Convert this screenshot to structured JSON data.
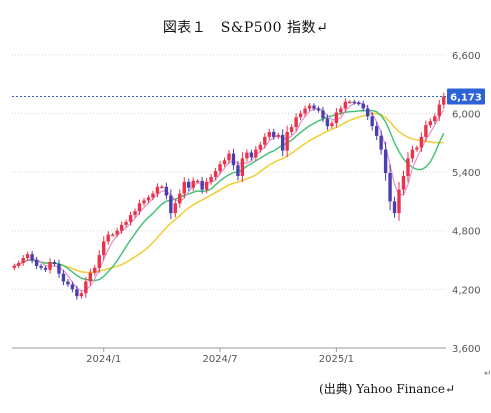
{
  "title": "図表１　S&P500 指数↵",
  "source_note": "(出典) Yahoo Finance↵",
  "corner_mark": "↵",
  "chart_data": {
    "type": "candlestick",
    "y_ticks": [
      3600,
      4200,
      4800,
      5400,
      6000,
      6600
    ],
    "y_tick_labels": [
      "3,600",
      "4,200",
      "4,800",
      "5,400",
      "6,000",
      "6,600"
    ],
    "ylim": [
      3600,
      6700
    ],
    "x_tick_labels": [
      "2024/1",
      "2024/7",
      "2025/1"
    ],
    "x_tick_weeks": [
      20,
      46,
      72
    ],
    "total_weeks": 96,
    "grid": "horizontal-dotted",
    "last_price": 6173,
    "last_price_label": "6,173",
    "colors": {
      "up": "#e8334a",
      "down": "#4a3fb0",
      "ma_short": "#e690d0",
      "ma_mid": "#3ec070",
      "ma_long": "#f0d040",
      "price_line": "#2f5fd0",
      "badge": "#2c63d6"
    },
    "weekly_close": [
      4440,
      4470,
      4520,
      4560,
      4500,
      4440,
      4420,
      4400,
      4480,
      4460,
      4360,
      4280,
      4250,
      4200,
      4130,
      4160,
      4280,
      4370,
      4420,
      4550,
      4690,
      4760,
      4760,
      4800,
      4860,
      4890,
      4960,
      5000,
      5080,
      5110,
      5140,
      5180,
      5250,
      5250,
      5160,
      4980,
      5080,
      5180,
      5300,
      5240,
      5310,
      5310,
      5220,
      5300,
      5350,
      5410,
      5480,
      5520,
      5590,
      5470,
      5360,
      5540,
      5600,
      5550,
      5630,
      5680,
      5760,
      5810,
      5760,
      5780,
      5620,
      5810,
      5860,
      5960,
      6000,
      6050,
      6080,
      6050,
      6030,
      5950,
      5870,
      5900,
      6010,
      6050,
      6120,
      6120,
      6110,
      6100,
      6050,
      5970,
      5870,
      5770,
      5630,
      5390,
      5100,
      4980,
      5220,
      5360,
      5540,
      5630,
      5650,
      5760,
      5880,
      5920,
      5970,
      6090,
      6173
    ]
  }
}
